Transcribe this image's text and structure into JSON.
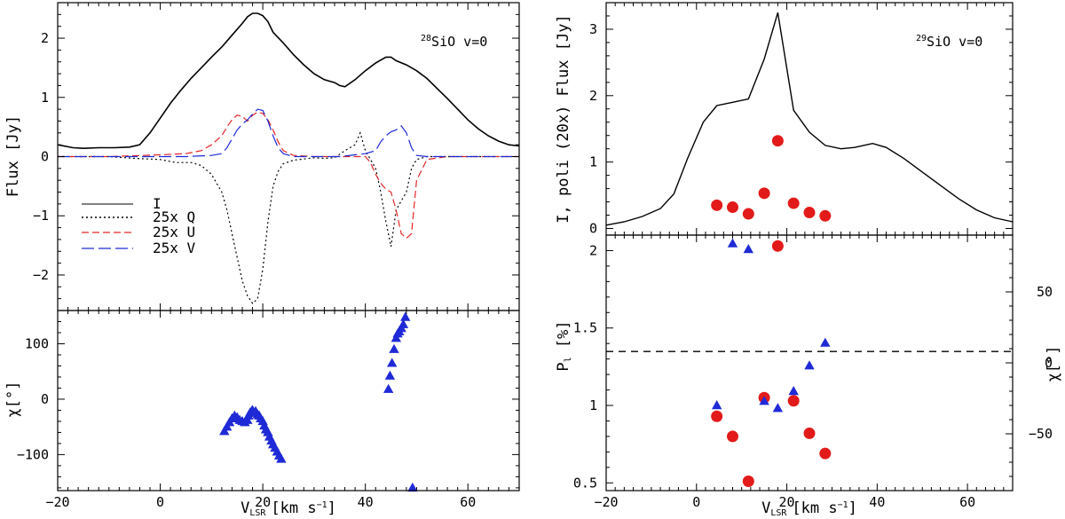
{
  "chart_data": [
    {
      "name": "left-top",
      "type": "line",
      "annotation_prefix": "28",
      "annotation": "SiO v=0",
      "ylabel": "Flux [Jy]",
      "xlim": [
        -20,
        70
      ],
      "ylim": [
        -2.6,
        2.6
      ],
      "yticks": [
        -2,
        -1,
        0,
        1,
        2
      ],
      "legend_position": "left",
      "series": [
        {
          "name": "I",
          "legend": "I",
          "color": "#000000",
          "dash": "",
          "x": [
            -20,
            -17,
            -15,
            -12,
            -9,
            -6,
            -4,
            -2,
            0,
            2,
            4,
            6,
            8,
            10,
            12,
            14,
            16,
            17,
            18,
            19,
            20,
            21,
            22,
            24,
            26,
            28,
            30,
            32,
            34,
            35,
            36,
            38,
            40,
            42,
            44,
            45,
            46,
            48,
            50,
            52,
            54,
            56,
            58,
            60,
            62,
            64,
            66,
            68,
            70
          ],
          "y": [
            0.2,
            0.15,
            0.14,
            0.15,
            0.15,
            0.16,
            0.2,
            0.4,
            0.65,
            0.9,
            1.12,
            1.32,
            1.5,
            1.68,
            1.85,
            2.05,
            2.25,
            2.36,
            2.42,
            2.42,
            2.38,
            2.28,
            2.1,
            1.92,
            1.72,
            1.55,
            1.4,
            1.3,
            1.25,
            1.2,
            1.18,
            1.3,
            1.45,
            1.58,
            1.68,
            1.68,
            1.62,
            1.55,
            1.45,
            1.32,
            1.15,
            0.98,
            0.8,
            0.62,
            0.47,
            0.35,
            0.26,
            0.2,
            0.18
          ]
        },
        {
          "name": "25x Q",
          "legend": "25x Q",
          "color": "#000000",
          "dash": "2,3",
          "x": [
            -20,
            -15,
            -10,
            -5,
            0,
            3,
            6,
            8,
            10,
            12,
            13,
            14,
            15,
            16,
            17,
            18,
            19,
            20,
            21,
            22,
            23,
            24,
            26,
            28,
            30,
            32,
            34,
            36,
            38,
            39,
            40,
            41,
            42,
            43,
            44,
            45,
            46,
            47,
            48,
            49,
            50,
            52,
            56,
            60,
            65,
            70
          ],
          "y": [
            0,
            0,
            0,
            -0.03,
            -0.05,
            -0.1,
            -0.1,
            -0.15,
            -0.3,
            -0.6,
            -0.9,
            -1.3,
            -1.7,
            -2.1,
            -2.35,
            -2.48,
            -2.4,
            -1.9,
            -1.1,
            -0.5,
            -0.25,
            -0.12,
            -0.06,
            -0.04,
            -0.02,
            -0.03,
            -0.02,
            0.1,
            0.2,
            0.4,
            0.1,
            -0.05,
            -0.2,
            -0.6,
            -1.1,
            -1.52,
            -0.9,
            -0.75,
            -0.6,
            -0.2,
            -0.05,
            0,
            0,
            0,
            0,
            0
          ]
        },
        {
          "name": "25x U",
          "legend": "25x U",
          "color": "#e32626",
          "dash": "8,4",
          "x": [
            -20,
            -10,
            0,
            5,
            8,
            10,
            12,
            13,
            14,
            15,
            16,
            17,
            18,
            19,
            20,
            21,
            22,
            23,
            24,
            26,
            30,
            35,
            40,
            41,
            42,
            43,
            44,
            45,
            46,
            47,
            48,
            49,
            50,
            52,
            56,
            60,
            65,
            70
          ],
          "y": [
            0,
            0,
            0.03,
            0.05,
            0.1,
            0.2,
            0.35,
            0.5,
            0.62,
            0.7,
            0.68,
            0.6,
            0.7,
            0.75,
            0.73,
            0.62,
            0.45,
            0.25,
            0.1,
            0.02,
            0,
            0,
            0,
            -0.1,
            -0.3,
            -0.45,
            -0.55,
            -0.6,
            -0.9,
            -1.3,
            -1.38,
            -1.3,
            -0.4,
            -0.05,
            0,
            0,
            0,
            0
          ]
        },
        {
          "name": "25x V",
          "legend": "25x V",
          "color": "#1f2ad6",
          "dash": "14,5",
          "x": [
            -20,
            -10,
            0,
            5,
            10,
            12,
            13,
            14,
            15,
            16,
            17,
            18,
            19,
            20,
            21,
            22,
            23,
            24,
            26,
            30,
            35,
            40,
            42,
            43,
            44,
            45,
            46,
            47,
            48,
            49,
            50,
            52,
            56,
            60,
            65,
            70
          ],
          "y": [
            0,
            0,
            0,
            0,
            0.02,
            0.05,
            0.15,
            0.3,
            0.45,
            0.55,
            0.62,
            0.72,
            0.8,
            0.78,
            0.6,
            0.35,
            0.15,
            0.05,
            0,
            0,
            0,
            0.05,
            0.1,
            0.25,
            0.35,
            0.42,
            0.45,
            0.52,
            0.4,
            0.15,
            0.02,
            0,
            0,
            0,
            0,
            0
          ]
        }
      ]
    },
    {
      "name": "left-bottom",
      "type": "scatter",
      "ylabel": "χ[°]",
      "xlabel": "V",
      "xlabel_sub": "LSR",
      "xlabel_unit": "[km s",
      "xlabel_sup": "−1",
      "xlabel_end": "]",
      "xlim": [
        -20,
        70
      ],
      "ylim": [
        -165,
        160
      ],
      "xticks": [
        -20,
        0,
        20,
        40,
        60
      ],
      "yticks": [
        -100,
        0,
        100
      ],
      "series": [
        {
          "name": "chi",
          "marker": "triangle",
          "color": "#1f2ad6",
          "x": [
            12.5,
            13,
            13.5,
            14,
            14.5,
            15,
            15.5,
            16,
            16.5,
            17,
            17.2,
            17.5,
            17.8,
            18,
            18.3,
            18.6,
            19,
            19.3,
            19.6,
            20,
            20.3,
            20.6,
            21,
            21.3,
            21.7,
            22,
            22.4,
            22.8,
            23.2,
            23.6,
            44.5,
            44.8,
            45.2,
            45.6,
            46,
            46.3,
            46.6,
            47,
            47.4,
            47.8,
            49.2
          ],
          "y": [
            -58,
            -50,
            -42,
            -35,
            -30,
            -33,
            -38,
            -40,
            -42,
            -38,
            -30,
            -25,
            -22,
            -20,
            -25,
            -22,
            -28,
            -30,
            -35,
            -40,
            -48,
            -55,
            -60,
            -68,
            -75,
            -82,
            -88,
            -95,
            -102,
            -108,
            18,
            42,
            65,
            90,
            110,
            118,
            122,
            128,
            135,
            148,
            -160
          ]
        }
      ]
    },
    {
      "name": "right-top",
      "type": "line",
      "annotation_prefix": "29",
      "annotation": "SiO v=0",
      "ylabel": "I, poli (20x) Flux [Jy]",
      "xlim": [
        -20,
        70
      ],
      "ylim": [
        -0.1,
        3.4
      ],
      "yticks": [
        0,
        1,
        2,
        3
      ],
      "series": [
        {
          "name": "I",
          "color": "#000000",
          "x": [
            -20,
            -16,
            -12,
            -8,
            -5,
            -2,
            1.5,
            4.5,
            8,
            11.5,
            15,
            18,
            21.5,
            25,
            28.5,
            32,
            35,
            39,
            42,
            46,
            50,
            54,
            58,
            62,
            66,
            70
          ],
          "y": [
            0.05,
            0.1,
            0.18,
            0.3,
            0.52,
            1.05,
            1.6,
            1.85,
            1.9,
            1.95,
            2.55,
            3.25,
            1.78,
            1.45,
            1.25,
            1.2,
            1.22,
            1.28,
            1.22,
            1.05,
            0.85,
            0.65,
            0.45,
            0.28,
            0.16,
            0.1
          ]
        },
        {
          "name": "poli (20x)",
          "marker": "circle",
          "color": "#e31a1a",
          "x": [
            4.5,
            8,
            11.5,
            15,
            18,
            21.5,
            25,
            28.5
          ],
          "y": [
            0.35,
            0.32,
            0.22,
            0.53,
            1.32,
            0.38,
            0.24,
            0.19
          ]
        }
      ]
    },
    {
      "name": "right-bottom",
      "type": "scatter",
      "ylabel_left": "P",
      "ylabel_left_sub": "l",
      "ylabel_left_unit": " [%]",
      "ylabel_right": "χ[°]",
      "xlabel": "V",
      "xlabel_sub": "LSR",
      "xlabel_unit": "[km s",
      "xlabel_sup": "−1",
      "xlabel_end": "]",
      "xlim": [
        -20,
        70
      ],
      "ylim_left": [
        0.45,
        2.1
      ],
      "yticks_left": [
        0.5,
        1,
        1.5,
        2
      ],
      "ytick_labels_left": [
        "0.5",
        "1",
        "1.5",
        "2"
      ],
      "ylim_right": [
        -90,
        90
      ],
      "yticks_right": [
        -50,
        0,
        50
      ],
      "xticks": [
        -20,
        0,
        20,
        40,
        60
      ],
      "reference_line_chi": 8,
      "series": [
        {
          "name": "P_l",
          "marker": "circle",
          "color": "#e31a1a",
          "axis": "left",
          "x": [
            4.5,
            8,
            11.5,
            15,
            18,
            21.5,
            25,
            28.5
          ],
          "y": [
            0.93,
            0.8,
            0.51,
            1.05,
            2.03,
            1.03,
            0.82,
            0.69
          ]
        },
        {
          "name": "chi",
          "marker": "triangle",
          "color": "#1f2ad6",
          "axis": "right",
          "x": [
            4.5,
            8,
            11.5,
            15,
            18,
            21.5,
            25,
            28.5
          ],
          "y": [
            -30,
            84,
            80,
            -27,
            -32,
            -20,
            -2,
            14
          ]
        }
      ]
    }
  ]
}
